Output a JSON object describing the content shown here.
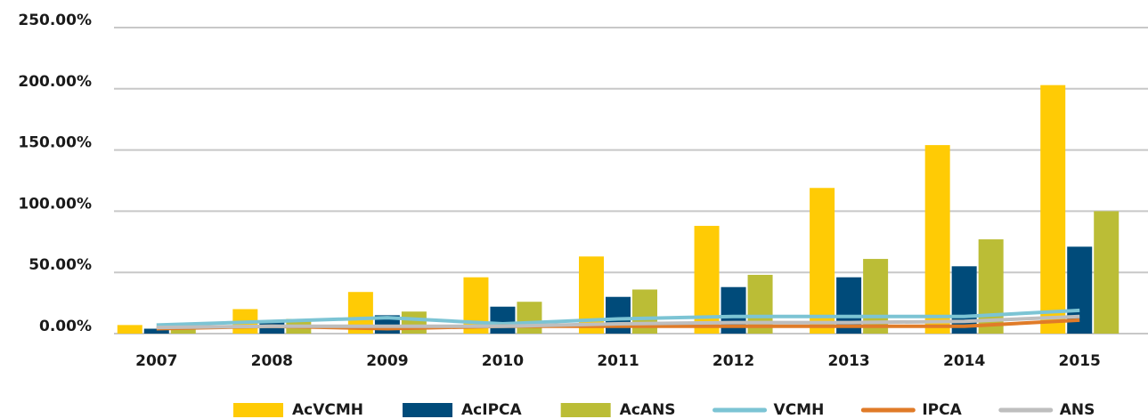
{
  "chart_data": {
    "type": "combo",
    "categories": [
      "2007",
      "2008",
      "2009",
      "2010",
      "2011",
      "2012",
      "2013",
      "2014",
      "2015"
    ],
    "series": [
      {
        "name": "AcVCMH",
        "type": "bar",
        "color": "#FFCB05",
        "values": [
          7,
          20,
          34,
          46,
          63,
          88,
          119,
          154,
          203
        ]
      },
      {
        "name": "AcIPCA",
        "type": "bar",
        "color": "#004B7A",
        "values": [
          4,
          10,
          15,
          22,
          30,
          38,
          46,
          55,
          71
        ]
      },
      {
        "name": "AcANS",
        "type": "bar",
        "color": "#BBBD36",
        "values": [
          5,
          12,
          18,
          26,
          36,
          48,
          61,
          77,
          100
        ]
      },
      {
        "name": "VCMH",
        "type": "line",
        "color": "#7CC4D4",
        "values": [
          7,
          10,
          13,
          8,
          12,
          14,
          14,
          14,
          19
        ]
      },
      {
        "name": "IPCA",
        "type": "line",
        "color": "#E07B28",
        "values": [
          4,
          6,
          4,
          6,
          6,
          6,
          6,
          6,
          11
        ]
      },
      {
        "name": "ANS",
        "type": "line",
        "color": "#BEBEBE",
        "values": [
          5,
          6,
          6,
          6,
          8,
          9,
          9,
          10,
          14
        ]
      }
    ],
    "ylim": [
      0,
      250
    ],
    "yticks": [
      {
        "value": 0,
        "label": "0.00%"
      },
      {
        "value": 50,
        "label": "50.00%"
      },
      {
        "value": 100,
        "label": "100.00%"
      },
      {
        "value": 150,
        "label": "150.00%"
      },
      {
        "value": 200,
        "label": "200.00%"
      },
      {
        "value": 250,
        "label": "250.00%"
      }
    ],
    "grid": true,
    "legend": "bottom"
  }
}
